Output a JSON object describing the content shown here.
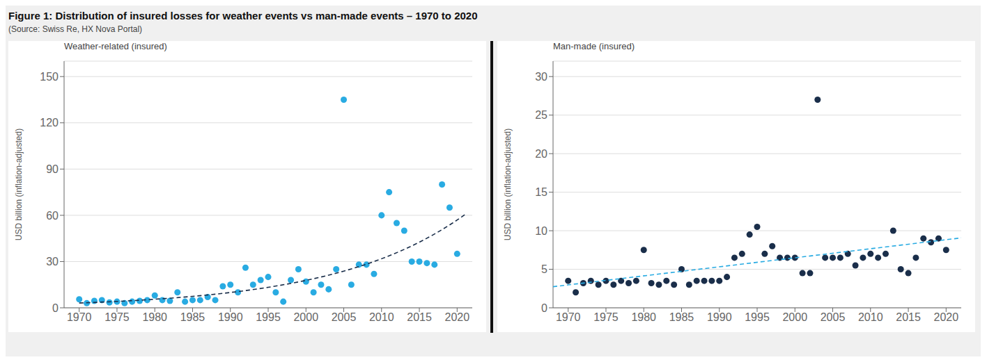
{
  "title": "Figure 1: Distribution of insured losses for weather events vs man-made events – 1970 to 2020",
  "subtitle": "(Source: Swiss Re, HX Nova Portal)",
  "chart_data": [
    {
      "type": "scatter",
      "title": "Weather-related (insured)",
      "y_label": "USD billion (inflation-adjusted)",
      "xlim": [
        1968,
        2022
      ],
      "xticks": [
        1970,
        1975,
        1980,
        1985,
        1990,
        1995,
        2000,
        2005,
        2010,
        2015,
        2020
      ],
      "ylim": [
        0,
        160
      ],
      "yticks": [
        0,
        30,
        60,
        90,
        120,
        150
      ],
      "grid": "y",
      "series": [
        {
          "type": "scatter",
          "marker": "circle",
          "color": "#29ABE2",
          "x": [
            1970,
            1971,
            1972,
            1973,
            1974,
            1975,
            1976,
            1977,
            1978,
            1979,
            1980,
            1981,
            1982,
            1983,
            1984,
            1985,
            1986,
            1987,
            1988,
            1989,
            1990,
            1991,
            1992,
            1993,
            1994,
            1995,
            1996,
            1997,
            1998,
            1999,
            2000,
            2001,
            2002,
            2003,
            2004,
            2005,
            2006,
            2007,
            2008,
            2009,
            2010,
            2011,
            2012,
            2013,
            2014,
            2015,
            2016,
            2017,
            2018,
            2019,
            2020
          ],
          "values": [
            5.5,
            3.0,
            4.5,
            5.0,
            3.5,
            4.0,
            3.0,
            4.0,
            4.5,
            5.0,
            8.0,
            5.0,
            4.5,
            10.0,
            4.0,
            5.0,
            5.0,
            7.0,
            5.0,
            14.0,
            15.0,
            10.0,
            26.0,
            15.0,
            18.0,
            20.0,
            10.0,
            4.0,
            18.0,
            25.0,
            17.0,
            10.0,
            15.0,
            12.0,
            25.0,
            135.0,
            15.0,
            28.0,
            28.0,
            22.0,
            60.0,
            75.0,
            55.0,
            50.0,
            30.0,
            30.0,
            29.0,
            28.0,
            80.0,
            65.0,
            35.0
          ]
        },
        {
          "type": "line",
          "line_style": "dashed",
          "color": "#1a2e4a",
          "x": [
            1970,
            1975,
            1980,
            1985,
            1990,
            1995,
            2000,
            2005,
            2010,
            2015,
            2020,
            2021
          ],
          "values": [
            3.1,
            4.15,
            5.56,
            7.43,
            9.94,
            13.3,
            17.79,
            23.8,
            31.83,
            42.58,
            56.96,
            60.37
          ]
        }
      ]
    },
    {
      "type": "scatter",
      "title": "Man-made (insured)",
      "y_label": "USD billion (inflation-adjusted)",
      "xlim": [
        1968,
        2022
      ],
      "xticks": [
        1970,
        1975,
        1980,
        1985,
        1990,
        1995,
        2000,
        2005,
        2010,
        2015,
        2020
      ],
      "ylim": [
        0,
        32
      ],
      "yticks": [
        0,
        5,
        10,
        15,
        20,
        25,
        30
      ],
      "grid": "y",
      "series": [
        {
          "type": "scatter",
          "marker": "circle",
          "color": "#1a2e4a",
          "x": [
            1970,
            1971,
            1972,
            1973,
            1974,
            1975,
            1976,
            1977,
            1978,
            1979,
            1980,
            1981,
            1982,
            1983,
            1984,
            1985,
            1986,
            1987,
            1988,
            1989,
            1990,
            1991,
            1992,
            1993,
            1994,
            1995,
            1996,
            1997,
            1998,
            1999,
            2000,
            2001,
            2002,
            2003,
            2004,
            2005,
            2006,
            2007,
            2008,
            2009,
            2010,
            2011,
            2012,
            2013,
            2014,
            2015,
            2016,
            2017,
            2018,
            2019,
            2020
          ],
          "values": [
            3.5,
            2.0,
            3.2,
            3.5,
            3.0,
            3.5,
            3.0,
            3.5,
            3.2,
            3.5,
            7.5,
            3.2,
            3.0,
            3.5,
            3.0,
            5.0,
            3.0,
            3.5,
            3.5,
            3.5,
            3.5,
            4.0,
            6.5,
            7.0,
            9.5,
            10.5,
            7.0,
            8.0,
            6.5,
            6.5,
            6.5,
            4.5,
            4.5,
            27.0,
            6.5,
            6.5,
            6.5,
            7.0,
            5.5,
            6.5,
            7.0,
            6.5,
            7.0,
            10.0,
            5.0,
            4.5,
            6.5,
            9.0,
            8.5,
            9.0,
            7.5
          ]
        },
        {
          "type": "line",
          "line_style": "dashed",
          "color": "#29ABE2",
          "x": [
            1968,
            2022
          ],
          "values": [
            2.738,
            9.07
          ]
        }
      ]
    }
  ]
}
